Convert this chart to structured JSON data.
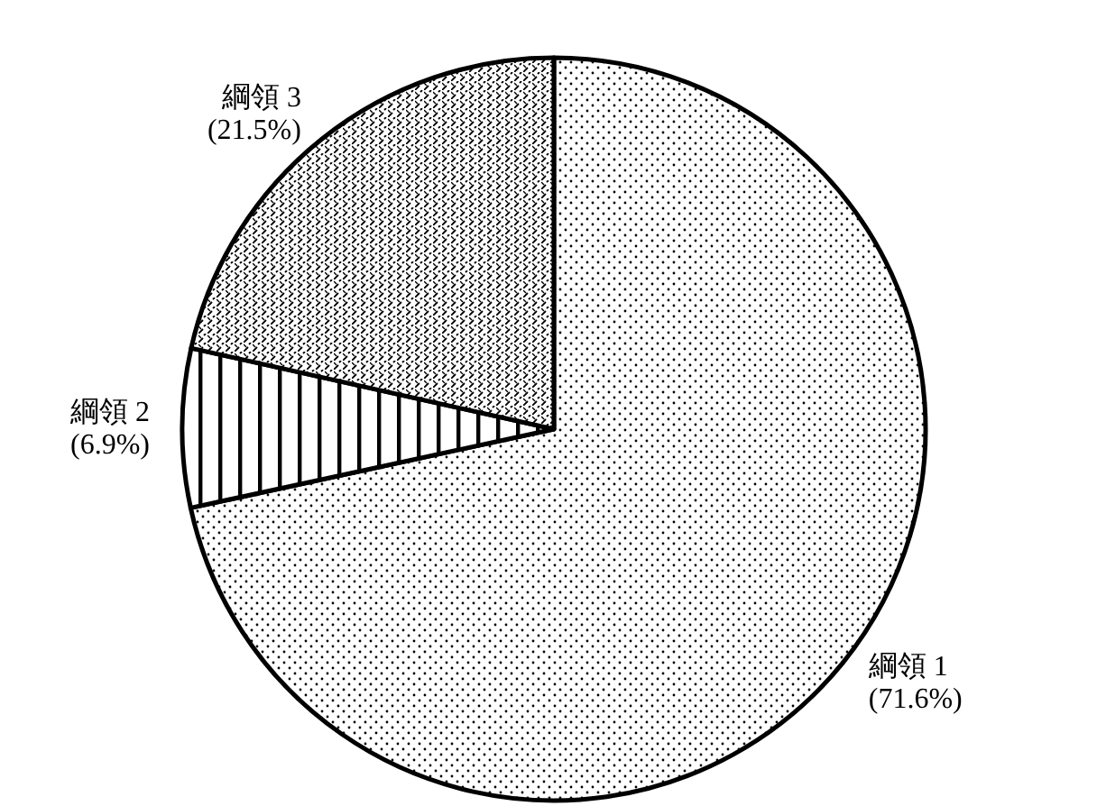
{
  "chart_data": {
    "type": "pie",
    "categories": [
      "綱領 1",
      "綱領 2",
      "綱領 3"
    ],
    "values": [
      71.6,
      6.9,
      21.5
    ],
    "value_labels": [
      "(71.6%)",
      "(6.9%)",
      "(21.5%)"
    ],
    "colors": [
      "#ffffff",
      "#ffffff",
      "#ffffff"
    ]
  }
}
